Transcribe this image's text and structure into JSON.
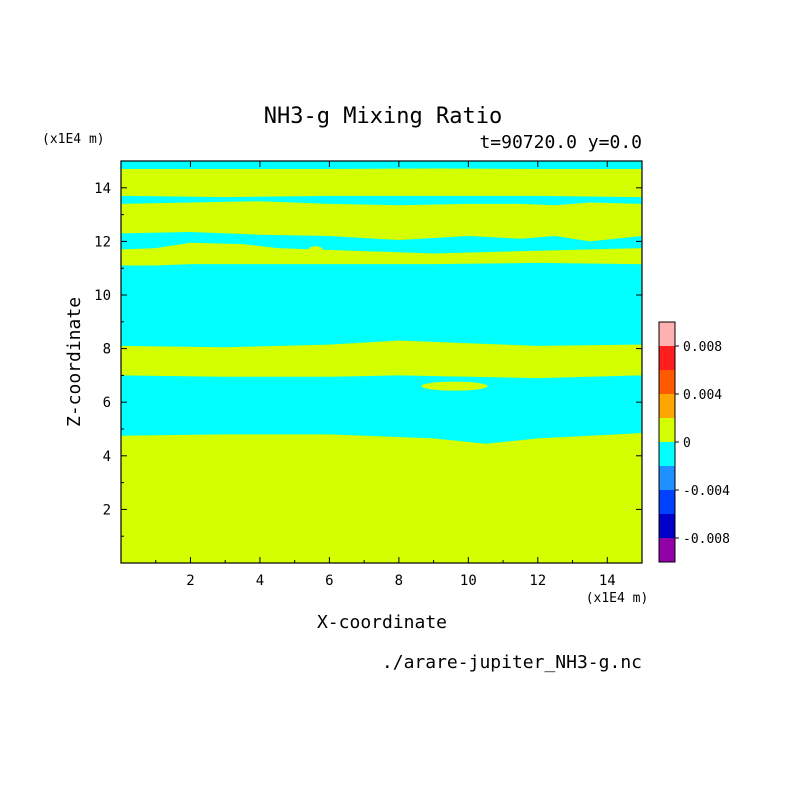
{
  "chart_data": {
    "type": "heatmap",
    "title": "NH3-g Mixing Ratio",
    "subtitle": "t=90720.0 y=0.0",
    "xlabel": "X-coordinate",
    "ylabel": "Z-coordinate",
    "x_unit_label": "(x1E4 m)",
    "y_unit_label": "(x1E4 m)",
    "filename": "./arare-jupiter_NH3-g.nc",
    "xlim": [
      0,
      15
    ],
    "ylim": [
      0,
      15
    ],
    "x_ticks": [
      2,
      4,
      6,
      8,
      10,
      12,
      14
    ],
    "y_ticks": [
      2,
      4,
      6,
      8,
      10,
      12,
      14
    ],
    "x_tick_labels": [
      "2",
      "4",
      "6",
      "8",
      "10",
      "12",
      "14"
    ],
    "y_tick_labels": [
      "2",
      "4",
      "6",
      "8",
      "10",
      "12",
      "14"
    ],
    "colorbar": {
      "levels": [
        -0.01,
        -0.008,
        -0.006,
        -0.004,
        -0.002,
        0,
        0.002,
        0.004,
        0.006,
        0.008,
        0.01
      ],
      "colors": [
        "#9400a8",
        "#0000c8",
        "#0040ff",
        "#1e90ff",
        "#00ffff",
        "#d4ff00",
        "#ffa500",
        "#ff5a00",
        "#ff1e1e",
        "#ffb0b0"
      ],
      "tick_values": [
        0.008,
        0.004,
        0,
        -0.004,
        -0.008
      ],
      "tick_labels": [
        "0.008",
        "0.004",
        "0",
        "-0.004",
        "-0.008"
      ]
    },
    "regions": {
      "positive_color": "#d4ff00",
      "negative_color": "#00ffff",
      "positive_bands": [
        {
          "x": [
            0,
            3,
            6,
            9,
            10.5,
            12,
            15
          ],
          "bottom": [
            0,
            0,
            0,
            0,
            0,
            0,
            0
          ],
          "top": [
            4.75,
            4.8,
            4.8,
            4.65,
            4.45,
            4.65,
            4.85
          ]
        },
        {
          "x": [
            0,
            3,
            6,
            8,
            10,
            12,
            15
          ],
          "bottom": [
            7.0,
            6.95,
            6.95,
            7.0,
            6.95,
            6.9,
            7.0
          ],
          "top": [
            8.1,
            8.05,
            8.15,
            8.3,
            8.2,
            8.1,
            8.15
          ]
        },
        {
          "x": [
            0,
            1,
            2,
            3.5,
            4.5,
            9,
            12,
            15
          ],
          "bottom": [
            11.1,
            11.1,
            11.15,
            11.15,
            11.15,
            11.15,
            11.2,
            11.15
          ],
          "top": [
            11.7,
            11.75,
            11.95,
            11.9,
            11.75,
            11.55,
            11.65,
            11.75
          ]
        },
        {
          "x": [
            0,
            2,
            4,
            6,
            8,
            10,
            11.5,
            12.5,
            13.5,
            15
          ],
          "bottom": [
            12.3,
            12.35,
            12.25,
            12.2,
            12.05,
            12.2,
            12.1,
            12.2,
            12.0,
            12.2
          ],
          "top": [
            13.4,
            13.45,
            13.5,
            13.4,
            13.35,
            13.4,
            13.4,
            13.35,
            13.45,
            13.4
          ]
        },
        {
          "x": [
            0,
            3,
            6,
            9,
            12,
            15
          ],
          "bottom": [
            13.7,
            13.65,
            13.7,
            13.7,
            13.7,
            13.65
          ],
          "top": [
            14.7,
            14.7,
            14.7,
            14.72,
            14.7,
            14.7
          ]
        }
      ],
      "positive_spots": [
        {
          "cx": 9.6,
          "cy": 6.6,
          "rx": 0.95,
          "ry": 0.17
        },
        {
          "cx": 5.6,
          "cy": 11.7,
          "rx": 0.2,
          "ry": 0.12
        }
      ]
    }
  }
}
